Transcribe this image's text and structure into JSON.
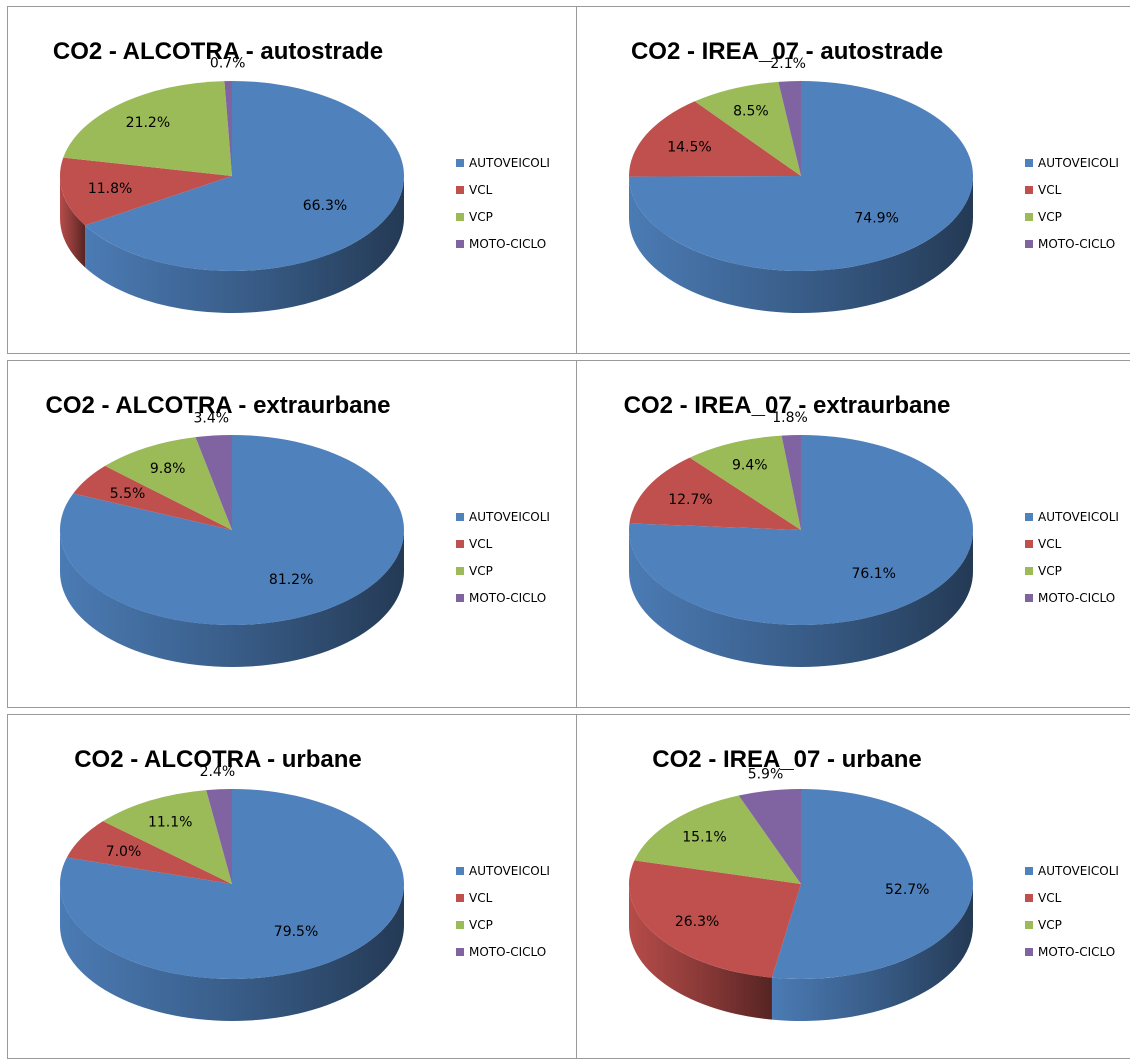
{
  "colors": {
    "AUTOVEICOLI": "#4f81bd",
    "VCL": "#c0504d",
    "VCP": "#9bbb59",
    "MOTO-CICLO": "#8064a2"
  },
  "chart_data": [
    {
      "type": "pie",
      "title": "CO2 - ALCOTRA - autostrade",
      "categories": [
        "AUTOVEICOLI",
        "VCL",
        "VCP",
        "MOTO-CICLO"
      ],
      "values": [
        66.3,
        11.8,
        21.2,
        0.7
      ],
      "labels": [
        "66.3%",
        "11.8%",
        "21.2%",
        "0.7%"
      ],
      "legend": "right"
    },
    {
      "type": "pie",
      "title": "CO2 - IREA_07 - autostrade",
      "categories": [
        "AUTOVEICOLI",
        "VCL",
        "VCP",
        "MOTO-CICLO"
      ],
      "values": [
        74.9,
        14.5,
        8.5,
        2.1
      ],
      "labels": [
        "74.9%",
        "14.5%",
        "8.5%",
        "2.1%"
      ],
      "legend": "right"
    },
    {
      "type": "pie",
      "title": "CO2 - ALCOTRA - extraurbane",
      "categories": [
        "AUTOVEICOLI",
        "VCL",
        "VCP",
        "MOTO-CICLO"
      ],
      "values": [
        81.2,
        5.5,
        9.8,
        3.4
      ],
      "labels": [
        "81.2%",
        "5.5%",
        "9.8%",
        "3.4%"
      ],
      "legend": "right"
    },
    {
      "type": "pie",
      "title": "CO2 - IREA_07 - extraurbane",
      "categories": [
        "AUTOVEICOLI",
        "VCL",
        "VCP",
        "MOTO-CICLO"
      ],
      "values": [
        76.1,
        12.7,
        9.4,
        1.8
      ],
      "labels": [
        "76.1%",
        "12.7%",
        "9.4%",
        "1.8%"
      ],
      "legend": "right"
    },
    {
      "type": "pie",
      "title": "CO2 - ALCOTRA - urbane",
      "categories": [
        "AUTOVEICOLI",
        "VCL",
        "VCP",
        "MOTO-CICLO"
      ],
      "values": [
        79.5,
        7.0,
        11.1,
        2.4
      ],
      "labels": [
        "79.5%",
        "7.0%",
        "11.1%",
        "2.4%"
      ],
      "legend": "right"
    },
    {
      "type": "pie",
      "title": "CO2 - IREA_07 - urbane",
      "categories": [
        "AUTOVEICOLI",
        "VCL",
        "VCP",
        "MOTO-CICLO"
      ],
      "values": [
        52.7,
        26.3,
        15.1,
        5.9
      ],
      "labels": [
        "52.7%",
        "26.3%",
        "15.1%",
        "5.9%"
      ],
      "legend": "right"
    }
  ]
}
